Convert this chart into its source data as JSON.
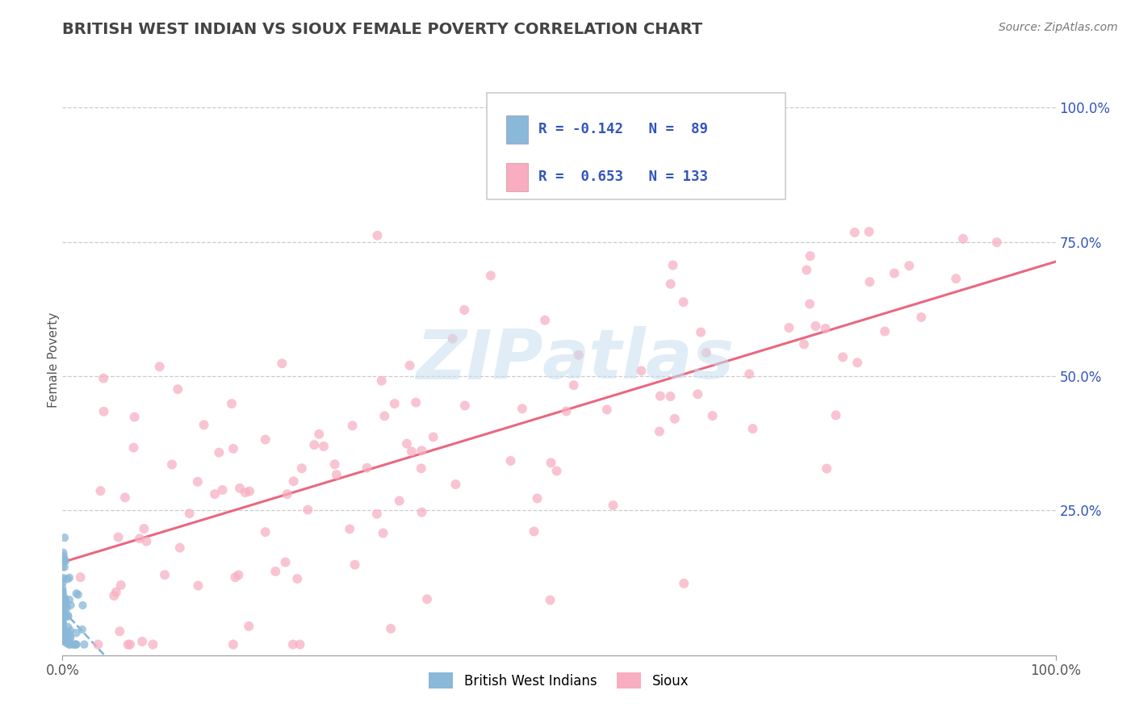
{
  "title": "BRITISH WEST INDIAN VS SIOUX FEMALE POVERTY CORRELATION CHART",
  "source_text": "Source: ZipAtlas.com",
  "ylabel": "Female Poverty",
  "x_tick_labels": [
    "0.0%",
    "100.0%"
  ],
  "y_tick_labels": [
    "25.0%",
    "50.0%",
    "75.0%",
    "100.0%"
  ],
  "y_tick_positions": [
    0.25,
    0.5,
    0.75,
    1.0
  ],
  "watermark_top": "ZIP",
  "watermark_bot": "atlas",
  "legend_line1": "R = -0.142   N =  89",
  "legend_line2": "R =  0.653   N = 133",
  "color_blue": "#89b8d8",
  "color_pink": "#f8aec0",
  "color_blue_dark": "#5599cc",
  "color_pink_dark": "#e8607a",
  "background_color": "#ffffff",
  "grid_color": "#cccccc",
  "title_color": "#444444",
  "label_color": "#3355bb",
  "tick_color": "#555555"
}
